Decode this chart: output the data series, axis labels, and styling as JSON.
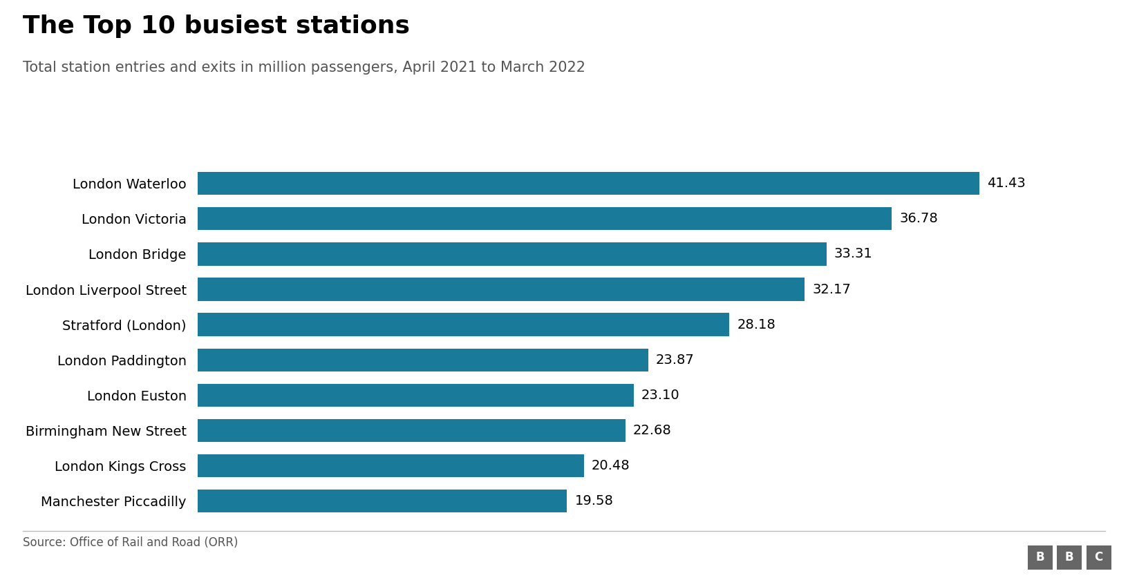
{
  "title": "The Top 10 busiest stations",
  "subtitle": "Total station entries and exits in million passengers, April 2021 to March 2022",
  "source": "Source: Office of Rail and Road (ORR)",
  "stations": [
    "London Waterloo",
    "London Victoria",
    "London Bridge",
    "London Liverpool Street",
    "Stratford (London)",
    "London Paddington",
    "London Euston",
    "Birmingham New Street",
    "London Kings Cross",
    "Manchester Piccadilly"
  ],
  "values": [
    41.43,
    36.78,
    33.31,
    32.17,
    28.18,
    23.87,
    23.1,
    22.68,
    20.48,
    19.58
  ],
  "bar_color": "#1a7a9a",
  "bg_color": "#ffffff",
  "text_color": "#000000",
  "title_fontsize": 26,
  "subtitle_fontsize": 15,
  "bar_label_fontsize": 14,
  "ytick_fontsize": 14,
  "source_fontsize": 12,
  "xlim": [
    0,
    46
  ]
}
